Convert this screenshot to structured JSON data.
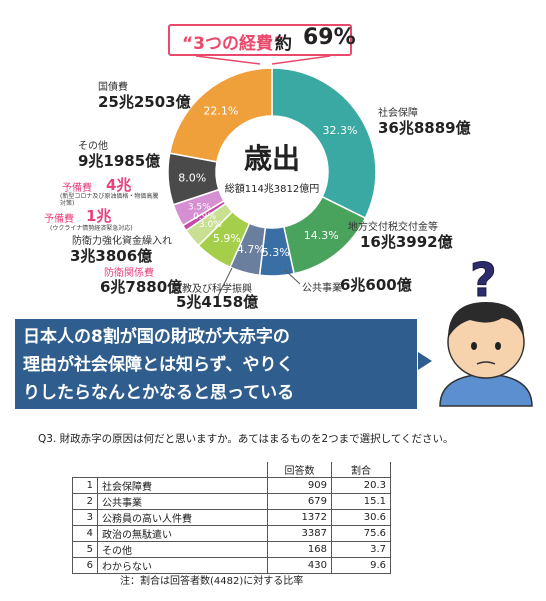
{
  "banner": {
    "quote": "“3つの経費”",
    "word": "約",
    "pct": "69%"
  },
  "chart_data": {
    "type": "pie",
    "center_title": "歳出",
    "center_total": "総額114兆3812億円",
    "slices": [
      {
        "label": "社会保障",
        "amount": "36兆8889億",
        "pct": 32.3,
        "pct_label": "32.3%",
        "color": "#3aa8a3"
      },
      {
        "label": "地方交付税交付金等",
        "amount": "16兆3992億",
        "pct": 14.3,
        "pct_label": "14.3%",
        "color": "#4aa35d"
      },
      {
        "label": "公共事業",
        "amount": "6兆600億",
        "pct": 5.3,
        "pct_label": "5.3%",
        "color": "#3a6fa6"
      },
      {
        "label": "文教及び科学振興",
        "amount": "5兆4158億",
        "pct": 4.7,
        "pct_label": "4.7%",
        "color": "#6a7f9d"
      },
      {
        "label": "防衛関係費",
        "amount": "6兆7880億",
        "pct": 5.9,
        "pct_label": "5.9%",
        "color": "#a5cf4a"
      },
      {
        "label": "防衛力強化資金繰入れ",
        "amount": "3兆3806億",
        "pct": 3.0,
        "pct_label": "3.0%",
        "color": "#c9df91"
      },
      {
        "label": "予備費",
        "sub": "(ウクライナ情勢経済緊急対応)",
        "amount": "1兆",
        "pct": 0.9,
        "pct_label": "0.9%",
        "color": "#c64aa8"
      },
      {
        "label": "予備費",
        "sub": "(新型コロナ及び原油価格・物価高騰対策)",
        "amount": "4兆",
        "pct": 3.5,
        "pct_label": "3.5%",
        "color": "#d68fd2"
      },
      {
        "label": "その他",
        "amount": "9兆1985億",
        "pct": 8.0,
        "pct_label": "8.0%",
        "color": "#4a4a4a"
      },
      {
        "label": "国債費",
        "amount": "25兆2503億",
        "pct": 22.1,
        "pct_label": "22.1%",
        "color": "#f0a03a"
      }
    ]
  },
  "message": {
    "line1": "日本人の8割が国の財政が大赤字の",
    "line2": "理由が社会保障とは知らず、やりく",
    "line3": "りしたらなんとかなると思っている"
  },
  "survey": {
    "question": "Q3. 財政赤字の原因は何だと思いますか。あてはまるものを2つまで選択してください。",
    "headers": [
      "回答数",
      "割合"
    ],
    "rows": [
      {
        "no": "1",
        "item": "社会保障費",
        "count": "909",
        "pct": "20.3"
      },
      {
        "no": "2",
        "item": "公共事業",
        "count": "679",
        "pct": "15.1"
      },
      {
        "no": "3",
        "item": "公務員の高い人件費",
        "count": "1372",
        "pct": "30.6"
      },
      {
        "no": "4",
        "item": "政治の無駄遣い",
        "count": "3387",
        "pct": "75.6"
      },
      {
        "no": "5",
        "item": "その他",
        "count": "168",
        "pct": "3.7"
      },
      {
        "no": "6",
        "item": "わからない",
        "count": "430",
        "pct": "9.6"
      }
    ],
    "note": "注：割合は回答者数(4482)に対する比率"
  }
}
